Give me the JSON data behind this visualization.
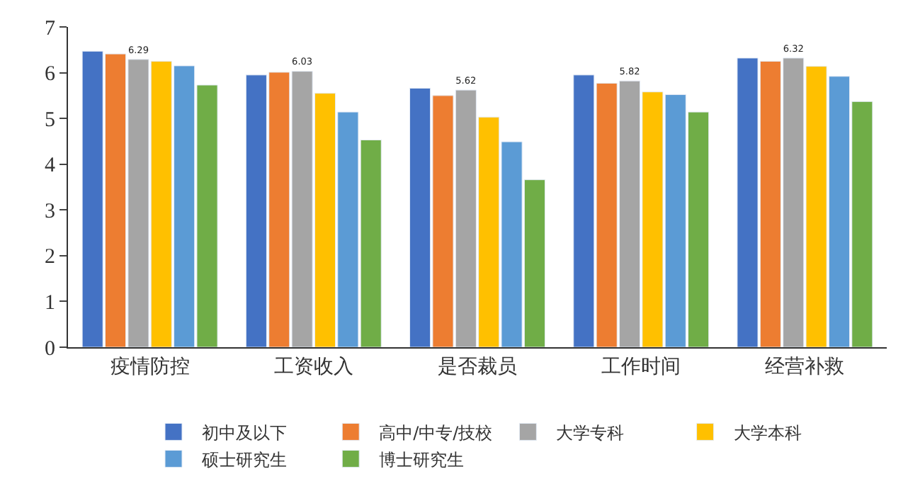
{
  "chart_data": {
    "type": "bar",
    "categories": [
      "疫情防控",
      "工资收入",
      "是否裁员",
      "工作时间",
      "经营补救"
    ],
    "series": [
      {
        "name": "初中及以下",
        "color": "#4472c4",
        "values": [
          6.47,
          5.95,
          5.66,
          5.95,
          6.32
        ]
      },
      {
        "name": "高中/中专/技校",
        "color": "#ed7d31",
        "values": [
          6.41,
          6.01,
          5.5,
          5.77,
          6.25
        ]
      },
      {
        "name": "大学专科",
        "color": "#a5a5a5",
        "values": [
          6.29,
          6.03,
          5.62,
          5.82,
          6.32
        ],
        "value_labels": [
          "6.29",
          "6.03",
          "5.62",
          "5.82",
          "6.32"
        ]
      },
      {
        "name": "大学本科",
        "color": "#ffc000",
        "values": [
          6.25,
          5.55,
          5.03,
          5.58,
          6.14
        ]
      },
      {
        "name": "硕士研究生",
        "color": "#5b9bd5",
        "values": [
          6.15,
          5.14,
          4.49,
          5.52,
          5.92
        ]
      },
      {
        "name": "博士研究生",
        "color": "#70ad47",
        "values": [
          5.73,
          4.53,
          3.66,
          5.14,
          5.37
        ]
      }
    ],
    "ylim": [
      0,
      7
    ],
    "yticks": [
      0,
      1,
      2,
      3,
      4,
      5,
      6,
      7
    ],
    "legend": "bottom"
  }
}
